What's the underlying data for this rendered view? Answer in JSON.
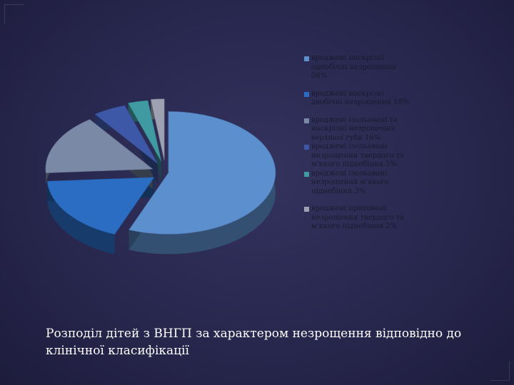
{
  "chart_data": {
    "type": "pie",
    "title": "",
    "series": [
      {
        "label": "вроджені наскрізні однобічні незрощення 56%",
        "value": 56,
        "color": "#5c8fce"
      },
      {
        "label": "вроджені наскрізні двобічні незрощення 18%",
        "value": 18,
        "color": "#2a6dc2"
      },
      {
        "label": "вроджені ізольовані та наскрізні незрощення верхньої губи 16%",
        "value": 16,
        "color": "#7a89a6"
      },
      {
        "label": "вроджені ізольовані незрощення твердого та м'якого піднебіння 5%",
        "value": 5,
        "color": "#3e58a8"
      },
      {
        "label": "вроджені ізольовані незрощення м'якого піднебіння 3%",
        "value": 3,
        "color": "#3f9aa2"
      },
      {
        "label": "вроджені приховані незрощення твердого та м'якого піднебіння 2%",
        "value": 2,
        "color": "#9ea1b2"
      }
    ],
    "legend_position": "right",
    "style": "3d-exploded"
  },
  "caption": "Розподіл дітей з ВНГП за характером незрощення  відповідно до клінічної класифікації"
}
